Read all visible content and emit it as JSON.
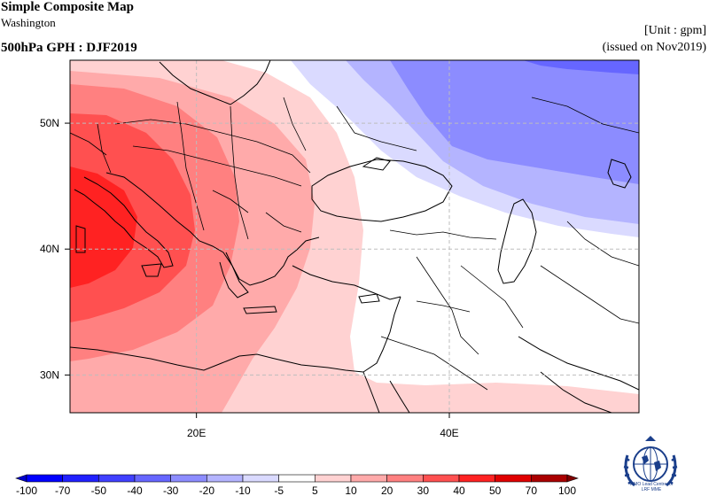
{
  "header": {
    "title": "Simple Composite Map",
    "subtitle": "Washington",
    "unit": "[Unit : gpm]",
    "variable": "500hPa GPH : DJF2019",
    "issued": "(issued on Nov2019)"
  },
  "map": {
    "lon_range": [
      10,
      55
    ],
    "lat_range": [
      27,
      55
    ],
    "lon_ticks": [
      {
        "value": 20,
        "label": "20E"
      },
      {
        "value": 40,
        "label": "40E"
      }
    ],
    "lat_ticks": [
      {
        "value": 30,
        "label": "30N"
      },
      {
        "value": 40,
        "label": "40N"
      },
      {
        "value": 50,
        "label": "50N"
      }
    ],
    "grid": true,
    "grid_style": "dashed"
  },
  "colorbar": {
    "levels": [
      "-100",
      "-70",
      "-50",
      "-40",
      "-30",
      "-20",
      "-10",
      "-5",
      "5",
      "10",
      "20",
      "30",
      "40",
      "50",
      "70",
      "100"
    ],
    "colors": [
      "#0000cc",
      "#0000ff",
      "#2020ff",
      "#4040ff",
      "#6666ff",
      "#8c8cff",
      "#b4b4ff",
      "#dadaff",
      "#ffffff",
      "#ffd2d2",
      "#ffaaaa",
      "#ff8080",
      "#ff5050",
      "#ff2222",
      "#e00000",
      "#aa0000",
      "#800000"
    ]
  },
  "logo": {
    "icon": "wmo-globe-logo",
    "text": "WMO Lead Centre for\nLRF MME"
  }
}
